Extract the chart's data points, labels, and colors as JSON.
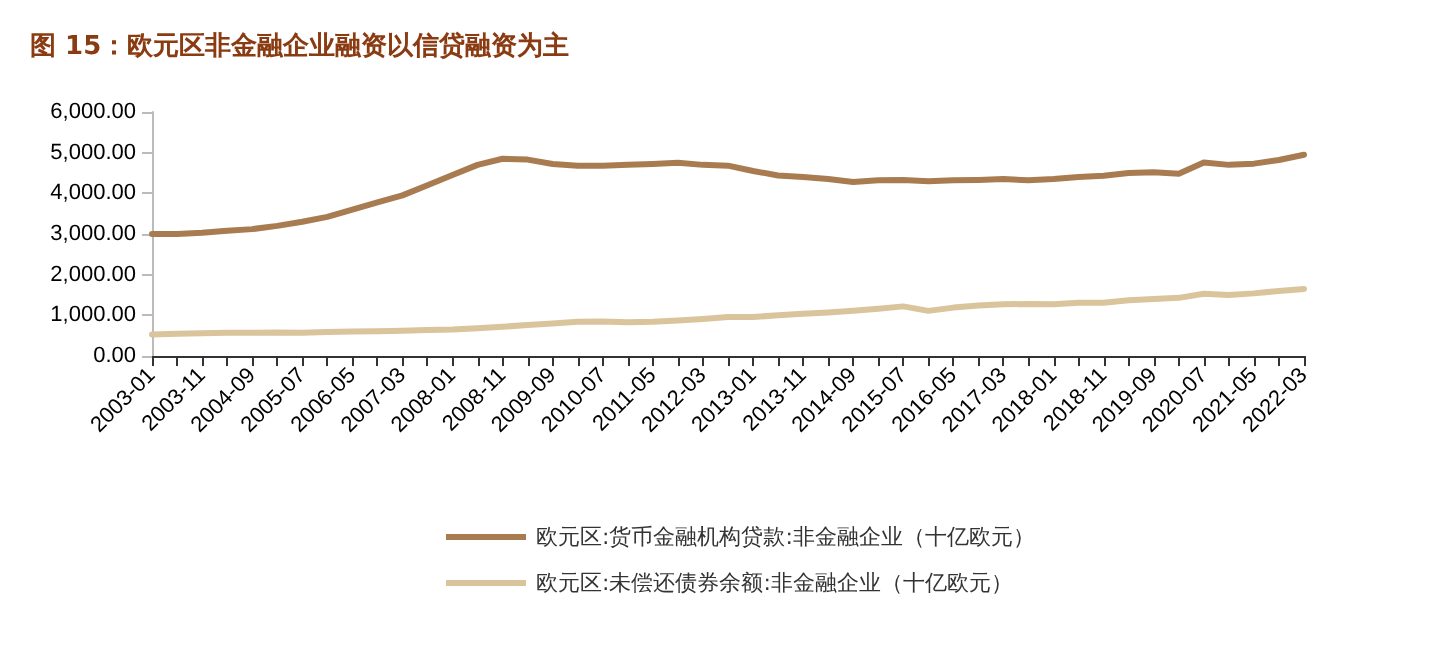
{
  "chart_data": {
    "type": "line",
    "title": "图 15：欧元区非金融企业融资以信贷融资为主",
    "categories": [
      "2003-01",
      null,
      "2003-11",
      null,
      "2004-09",
      null,
      "2005-07",
      null,
      "2006-05",
      null,
      "2007-03",
      null,
      "2008-01",
      null,
      "2008-11",
      null,
      "2009-09",
      null,
      "2010-07",
      null,
      "2011-05",
      null,
      "2012-03",
      null,
      "2013-01",
      null,
      "2013-11",
      null,
      "2014-09",
      null,
      "2015-07",
      null,
      "2016-05",
      null,
      "2017-03",
      null,
      "2018-01",
      null,
      "2018-11",
      null,
      "2019-09",
      null,
      "2020-07",
      null,
      "2021-05",
      null,
      "2022-03"
    ],
    "series": [
      {
        "name": "欧元区:货币金融机构贷款:非金融企业（十亿欧元）",
        "color": "#a87c50",
        "values": [
          3000,
          3000,
          3030,
          3080,
          3120,
          3200,
          3300,
          3420,
          3600,
          3780,
          3950,
          4200,
          4450,
          4700,
          4850,
          4830,
          4720,
          4680,
          4680,
          4700,
          4720,
          4750,
          4700,
          4680,
          4550,
          4440,
          4400,
          4350,
          4280,
          4320,
          4330,
          4300,
          4320,
          4330,
          4350,
          4320,
          4350,
          4400,
          4430,
          4500,
          4520,
          4480,
          4760,
          4700,
          4730,
          4820,
          4950
        ]
      },
      {
        "name": "欧元区:未偿还债券余额:非金融企业（十亿欧元）",
        "color": "#d9c49c",
        "values": [
          530,
          550,
          560,
          570,
          570,
          580,
          570,
          590,
          600,
          610,
          620,
          640,
          650,
          680,
          720,
          760,
          800,
          840,
          850,
          830,
          840,
          870,
          910,
          960,
          960,
          1000,
          1040,
          1070,
          1110,
          1160,
          1220,
          1110,
          1190,
          1240,
          1270,
          1280,
          1270,
          1310,
          1310,
          1370,
          1400,
          1430,
          1530,
          1500,
          1540,
          1600,
          1650
        ]
      }
    ],
    "ylim": [
      0,
      6000
    ],
    "yticks": [
      {
        "value": 0,
        "label": "0.00"
      },
      {
        "value": 1000,
        "label": "1,000.00"
      },
      {
        "value": 2000,
        "label": "2,000.00"
      },
      {
        "value": 3000,
        "label": "3,000.00"
      },
      {
        "value": 4000,
        "label": "4,000.00"
      },
      {
        "value": 5000,
        "label": "5,000.00"
      },
      {
        "value": 6000,
        "label": "6,000.00"
      }
    ],
    "grid": false,
    "legend": "bottom",
    "marker": "none",
    "line_style": "solid"
  }
}
